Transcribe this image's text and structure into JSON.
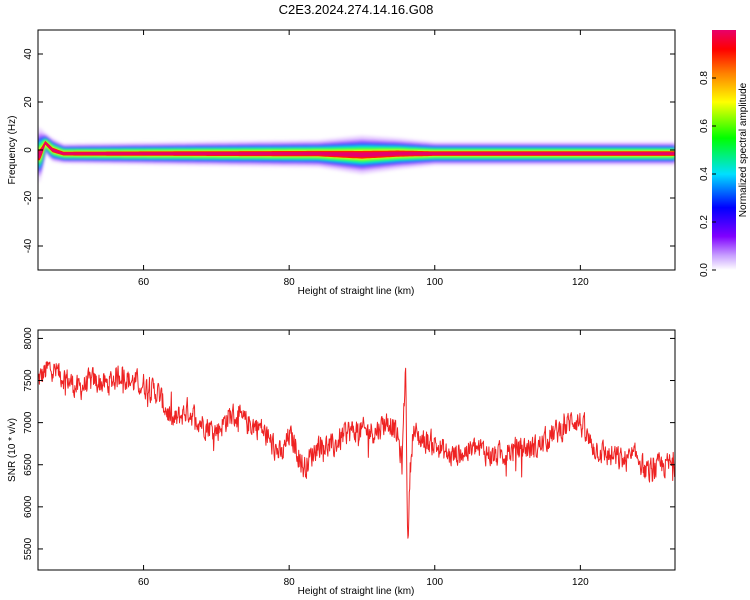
{
  "figure_title": "C2E3.2024.274.14.16.G08",
  "colors": {
    "snr_line": "#ee2222",
    "spec_peak": "#e8006a"
  },
  "chart_data": [
    {
      "type": "heatmap",
      "xlabel": "Height of straight line (km)",
      "ylabel": "Frequency (Hz)",
      "xlim": [
        45.5,
        133
      ],
      "ylim": [
        -50,
        50
      ],
      "x_ticks": [
        60,
        80,
        100,
        120
      ],
      "y_ticks": [
        -40,
        -20,
        0,
        20,
        40
      ],
      "colorbar": {
        "label": "Normalized spectral amplitude",
        "range": [
          0,
          1
        ],
        "ticks": [
          "0.0",
          "0.2",
          "0.4",
          "0.6",
          "0.8"
        ],
        "colormap": "rainbow (white-violet-blue-cyan-green-yellow-orange-red-magenta)"
      },
      "ridge_center_hz": -1.5,
      "ridge_profile": [
        {
          "x": 45.8,
          "center_hz": -2,
          "halfwidth_hz": 7
        },
        {
          "x": 46.5,
          "center_hz": 3,
          "halfwidth_hz": 2.5
        },
        {
          "x": 47.5,
          "center_hz": 0,
          "halfwidth_hz": 3
        },
        {
          "x": 49,
          "center_hz": -1.5,
          "halfwidth_hz": 2.5
        },
        {
          "x": 84,
          "center_hz": -1.5,
          "halfwidth_hz": 3.5
        },
        {
          "x": 90,
          "center_hz": -2,
          "halfwidth_hz": 5
        },
        {
          "x": 95,
          "center_hz": -1.5,
          "halfwidth_hz": 4
        },
        {
          "x": 100,
          "center_hz": -1.5,
          "halfwidth_hz": 3
        },
        {
          "x": 132,
          "center_hz": -1.5,
          "halfwidth_hz": 3
        }
      ]
    },
    {
      "type": "line",
      "xlabel": "Height of straight line (km)",
      "ylabel": "SNR (10 * v/v)",
      "xlim": [
        45.5,
        133
      ],
      "ylim": [
        5250,
        8100
      ],
      "x_ticks": [
        60,
        80,
        100,
        120
      ],
      "y_ticks": [
        5500,
        6000,
        6500,
        7000,
        7500,
        8000
      ],
      "series": [
        {
          "x": [
            45.5,
            47,
            49,
            51,
            53,
            55,
            57,
            58,
            60,
            62,
            64,
            66,
            68,
            70,
            72,
            74,
            76,
            78,
            79,
            80,
            81,
            82,
            84,
            86,
            88,
            90,
            92,
            93,
            94,
            95,
            95.5,
            96,
            96.3,
            96.6,
            97,
            98,
            100,
            102,
            104,
            106,
            108,
            110,
            112,
            114,
            116,
            118,
            119,
            120,
            121,
            122,
            124,
            126,
            128,
            129,
            130,
            132,
            133
          ],
          "values": [
            7500,
            7650,
            7550,
            7400,
            7500,
            7450,
            7600,
            7500,
            7450,
            7350,
            7000,
            7150,
            7000,
            6900,
            7100,
            7000,
            6950,
            6700,
            6600,
            6850,
            6700,
            6450,
            6750,
            6700,
            6900,
            6900,
            6900,
            7000,
            7000,
            6800,
            6500,
            7700,
            5500,
            6400,
            6900,
            6800,
            6750,
            6600,
            6650,
            6700,
            6600,
            6650,
            6700,
            6700,
            6850,
            6950,
            7050,
            7000,
            6800,
            6700,
            6600,
            6550,
            6600,
            6400,
            6450,
            6500,
            6500
          ]
        }
      ]
    }
  ]
}
